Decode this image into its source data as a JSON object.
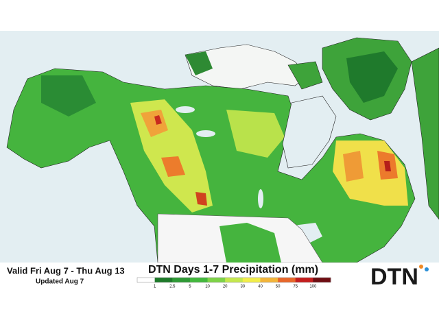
{
  "map": {
    "valid": "Valid Fri Aug 7 - Thu Aug 13",
    "updated": "Updated Aug 7",
    "title": "DTN Days 1-7 Precipitation (mm)",
    "legend": {
      "ticks": [
        1,
        2.5,
        5,
        10,
        20,
        30,
        40,
        50,
        75,
        100
      ],
      "colors": [
        "#ffffff",
        "#1e7a2a",
        "#2e9a35",
        "#43b83d",
        "#7ed348",
        "#c5e84e",
        "#f2ee4a",
        "#f3b53a",
        "#e8672a",
        "#c41e1e",
        "#6e0d12"
      ]
    },
    "logo": "DTN"
  }
}
